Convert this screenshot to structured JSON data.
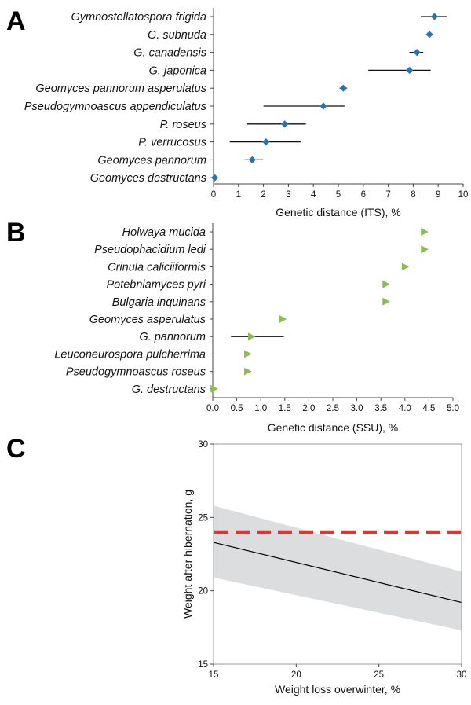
{
  "chart_data": [
    {
      "panel": "A",
      "type": "scatter",
      "xlabel": "Genetic distance (ITS), %",
      "xlim": [
        0,
        10
      ],
      "xticks": [
        "0",
        "1",
        "2",
        "3",
        "4",
        "5",
        "6",
        "7",
        "8",
        "9",
        "10"
      ],
      "marker_color": "#2673b8",
      "categories": [
        "Gymnostellatospora frigida",
        "G. subnuda",
        "G. canadensis",
        "G. japonica",
        "Geomyces pannorum asperulatus",
        "Pseudogymnoascus appendiculatus",
        "P. roseus",
        "P. verrucosus",
        "Geomyces pannorum",
        "Geomyces destructans"
      ],
      "values": [
        8.85,
        8.65,
        8.15,
        7.85,
        5.2,
        4.4,
        2.85,
        2.1,
        1.55,
        0.05
      ],
      "error_low": [
        8.3,
        8.65,
        7.85,
        6.2,
        5.05,
        2.0,
        1.35,
        0.65,
        1.25,
        0.05
      ],
      "error_high": [
        9.35,
        8.65,
        8.4,
        8.7,
        5.35,
        5.25,
        3.7,
        3.5,
        2.0,
        0.05
      ]
    },
    {
      "panel": "B",
      "type": "scatter",
      "xlabel": "Genetic distance (SSU), %",
      "xlim": [
        0,
        5
      ],
      "xticks": [
        "0.0",
        "0.5",
        "1.0",
        "1.5",
        "2.0",
        "2.5",
        "3.0",
        "3.5",
        "4.0",
        "4.5",
        "5.0"
      ],
      "marker_color": "#8cbb4f",
      "categories": [
        "Holwaya mucida",
        "Pseudophacidium ledi",
        "Crinula caliciiformis",
        "Potebniamyces pyri",
        "Bulgaria inquinans",
        "Geomyces asperulatus",
        "G. pannorum",
        "Leuconeurospora pulcherrima",
        "Pseudogymnoascus roseus",
        "G. destructans"
      ],
      "values": [
        4.4,
        4.4,
        4.0,
        3.6,
        3.6,
        1.45,
        0.8,
        0.72,
        0.72,
        0.02
      ],
      "error_low": [
        null,
        null,
        null,
        null,
        null,
        null,
        0.38,
        null,
        null,
        null
      ],
      "error_high": [
        null,
        null,
        null,
        null,
        null,
        null,
        1.48,
        null,
        null,
        null
      ]
    },
    {
      "panel": "C",
      "type": "line",
      "xlabel": "Weight loss overwinter, %",
      "ylabel": "Weight after hibernation, g",
      "xlim": [
        15,
        30
      ],
      "ylim": [
        15,
        30
      ],
      "xticks": [
        "15",
        "20",
        "25",
        "30"
      ],
      "yticks": [
        "15",
        "20",
        "25",
        "30"
      ],
      "fit_line": {
        "x": [
          15,
          30
        ],
        "y": [
          23.3,
          19.2
        ]
      },
      "confidence_band": {
        "x": [
          15,
          30
        ],
        "upper": [
          25.8,
          21.3
        ],
        "lower": [
          20.9,
          17.3
        ]
      },
      "threshold_line": {
        "y": 24.0,
        "color": "#e8322e",
        "style": "dashed"
      },
      "band_color": "#dcdddf",
      "line_color": "#000000"
    }
  ],
  "panels": {
    "A": "A",
    "B": "B",
    "C": "C"
  }
}
